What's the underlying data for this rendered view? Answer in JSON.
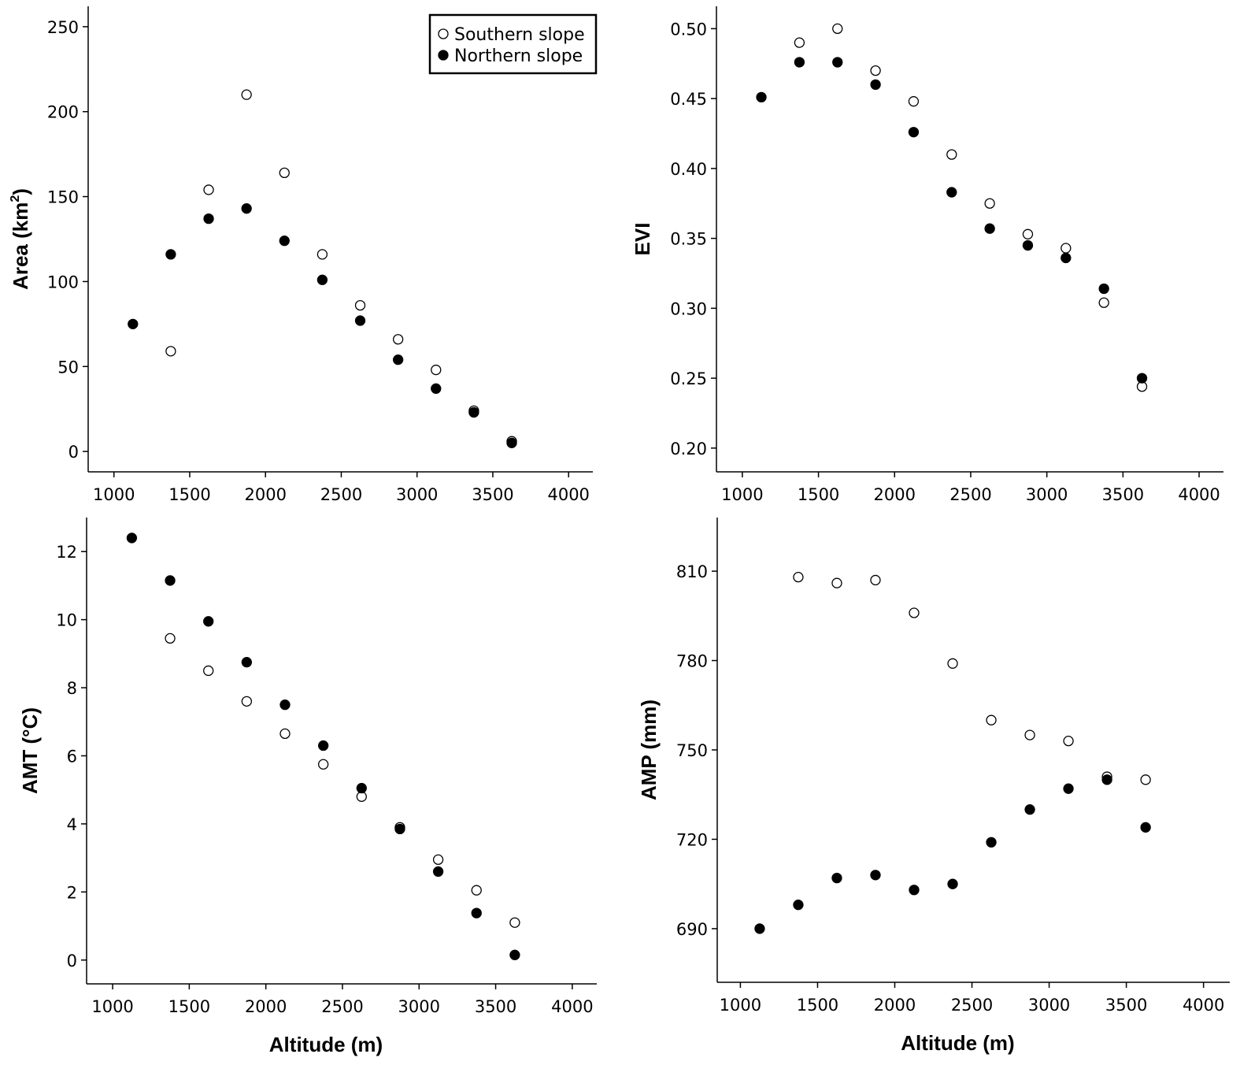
{
  "chart_data": [
    {
      "type": "scatter",
      "panel": "top-left",
      "ylabel": "Area (km²)",
      "ylabel_main": "Area (km",
      "ylabel_sup": "2",
      "ylabel_end": ")",
      "xlabel": "",
      "xlim": [
        830,
        4160
      ],
      "ylim": [
        -12,
        262
      ],
      "xticks": [
        1000,
        1500,
        2000,
        2500,
        3000,
        3500,
        4000
      ],
      "yticks": [
        0,
        50,
        100,
        150,
        200,
        250
      ],
      "legend": {
        "placement": "top-right",
        "entries": [
          "Southern slope",
          "Northern slope"
        ]
      },
      "series": [
        {
          "name": "Southern slope",
          "marker": "open",
          "x": [
            1375,
            1625,
            1875,
            2125,
            2375,
            2625,
            2875,
            3125,
            3375,
            3625
          ],
          "y": [
            59,
            154,
            210,
            164,
            116,
            86,
            66,
            48,
            24,
            6
          ]
        },
        {
          "name": "Northern slope",
          "marker": "filled",
          "x": [
            1125,
            1375,
            1625,
            1875,
            2125,
            2375,
            2625,
            2875,
            3125,
            3375,
            3625
          ],
          "y": [
            75,
            116,
            137,
            143,
            124,
            101,
            77,
            54,
            37,
            23,
            5
          ]
        }
      ]
    },
    {
      "type": "scatter",
      "panel": "top-right",
      "ylabel": "EVI",
      "xlabel": "",
      "xlim": [
        830,
        4160
      ],
      "ylim": [
        0.183,
        0.516
      ],
      "xticks": [
        1000,
        1500,
        2000,
        2500,
        3000,
        3500,
        4000
      ],
      "yticks": [
        0.2,
        0.25,
        0.3,
        0.35,
        0.4,
        0.45,
        0.5
      ],
      "ytick_decimals": 2,
      "series": [
        {
          "name": "Southern slope",
          "marker": "open",
          "x": [
            1375,
            1625,
            1875,
            2125,
            2375,
            2625,
            2875,
            3125,
            3375,
            3625
          ],
          "y": [
            0.49,
            0.5,
            0.47,
            0.448,
            0.41,
            0.375,
            0.353,
            0.343,
            0.304,
            0.244
          ]
        },
        {
          "name": "Northern slope",
          "marker": "filled",
          "x": [
            1125,
            1375,
            1625,
            1875,
            2125,
            2375,
            2625,
            2875,
            3125,
            3375,
            3625
          ],
          "y": [
            0.451,
            0.476,
            0.476,
            0.46,
            0.426,
            0.383,
            0.357,
            0.345,
            0.336,
            0.314,
            0.25
          ]
        }
      ]
    },
    {
      "type": "scatter",
      "panel": "bottom-left",
      "ylabel": "AMT (°C)",
      "xlabel": "Altitude (m)",
      "xlim": [
        830,
        4160
      ],
      "ylim": [
        -0.7,
        13.0
      ],
      "xticks": [
        1000,
        1500,
        2000,
        2500,
        3000,
        3500,
        4000
      ],
      "yticks": [
        0,
        2,
        4,
        6,
        8,
        10,
        12
      ],
      "series": [
        {
          "name": "Southern slope",
          "marker": "open",
          "x": [
            1375,
            1625,
            1875,
            2125,
            2375,
            2625,
            2875,
            3125,
            3375,
            3625
          ],
          "y": [
            9.45,
            8.5,
            7.6,
            6.65,
            5.75,
            4.8,
            3.9,
            2.95,
            2.05,
            1.1
          ]
        },
        {
          "name": "Northern slope",
          "marker": "filled",
          "x": [
            1125,
            1375,
            1625,
            1875,
            2125,
            2375,
            2625,
            2875,
            3125,
            3375,
            3625
          ],
          "y": [
            12.4,
            11.15,
            9.95,
            8.75,
            7.5,
            6.3,
            5.05,
            3.85,
            2.6,
            1.38,
            0.15
          ]
        }
      ]
    },
    {
      "type": "scatter",
      "panel": "bottom-right",
      "ylabel": "AMP (mm)",
      "xlabel": "Altitude (m)",
      "xlim": [
        850,
        4170
      ],
      "ylim": [
        672,
        828
      ],
      "xticks": [
        1000,
        1500,
        2000,
        2500,
        3000,
        3500,
        4000
      ],
      "yticks": [
        690,
        720,
        750,
        780,
        810
      ],
      "series": [
        {
          "name": "Southern slope",
          "marker": "open",
          "x": [
            1375,
            1625,
            1875,
            2125,
            2375,
            2625,
            2875,
            3125,
            3375,
            3625
          ],
          "y": [
            808,
            806,
            807,
            796,
            779,
            760,
            755,
            753,
            741,
            740
          ]
        },
        {
          "name": "Northern slope",
          "marker": "filled",
          "x": [
            1125,
            1375,
            1625,
            1875,
            2125,
            2375,
            2625,
            2875,
            3125,
            3375,
            3625
          ],
          "y": [
            690,
            698,
            707,
            708,
            703,
            705,
            719,
            730,
            737,
            740,
            724
          ]
        }
      ]
    }
  ]
}
